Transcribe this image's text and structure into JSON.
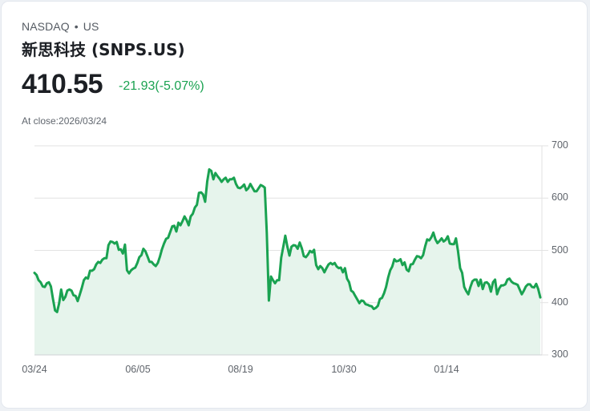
{
  "quote": {
    "exchange": "NASDAQ",
    "separator": "•",
    "market": "US",
    "title": "新思科技 (SNPS.US)",
    "price": "410.55",
    "change": "-21.93(-5.07%)",
    "close_label": "At close:2026/03/24"
  },
  "colors": {
    "line": "#1aa251",
    "fill": "#e6f4ec",
    "change_text": "#1aa251",
    "grid": "#e2e2e2"
  },
  "chart_data": {
    "type": "area",
    "title": "新思科技 (SNPS.US)",
    "xlabel": "",
    "ylabel": "",
    "ylim": [
      300,
      700
    ],
    "yticks": [
      700,
      600,
      500,
      400,
      300
    ],
    "xtick_labels": [
      "03/24",
      "06/05",
      "08/19",
      "10/30",
      "01/14"
    ],
    "grid": true,
    "legend": null,
    "approx_series_note": "values estimated from pixel positions, ordered chronologically from 03/24 to 03/24 (next year)",
    "series": [
      {
        "name": "SNPS.US close",
        "values": [
          457,
          453,
          443,
          439,
          431,
          430,
          437,
          439,
          431,
          407,
          385,
          382,
          399,
          425,
          405,
          411,
          423,
          425,
          423,
          414,
          413,
          403,
          415,
          428,
          443,
          448,
          446,
          461,
          461,
          464,
          473,
          478,
          476,
          482,
          485,
          485,
          510,
          517,
          516,
          513,
          516,
          501,
          502,
          494,
          511,
          462,
          456,
          462,
          465,
          467,
          476,
          487,
          491,
          503,
          498,
          488,
          478,
          478,
          473,
          470,
          476,
          488,
          502,
          513,
          522,
          524,
          535,
          546,
          547,
          536,
          553,
          548,
          556,
          565,
          558,
          548,
          565,
          570,
          582,
          587,
          610,
          611,
          607,
          593,
          632,
          655,
          652,
          636,
          648,
          642,
          637,
          631,
          636,
          639,
          631,
          636,
          636,
          639,
          627,
          620,
          619,
          622,
          626,
          615,
          619,
          627,
          620,
          613,
          613,
          619,
          625,
          623,
          620,
          534,
          404,
          450,
          443,
          437,
          443,
          443,
          486,
          507,
          528,
          507,
          490,
          507,
          510,
          509,
          503,
          515,
          504,
          489,
          487,
          492,
          499,
          496,
          501,
          472,
          464,
          470,
          466,
          458,
          466,
          473,
          476,
          473,
          476,
          469,
          466,
          467,
          458,
          466,
          446,
          439,
          423,
          420,
          413,
          406,
          399,
          404,
          403,
          397,
          396,
          394,
          393,
          388,
          390,
          394,
          407,
          409,
          418,
          430,
          448,
          462,
          469,
          483,
          479,
          480,
          483,
          472,
          477,
          463,
          460,
          473,
          474,
          482,
          489,
          488,
          485,
          491,
          508,
          521,
          519,
          525,
          534,
          521,
          514,
          518,
          523,
          517,
          520,
          527,
          513,
          512,
          512,
          523,
          498,
          466,
          457,
          430,
          422,
          416,
          430,
          441,
          444,
          444,
          432,
          444,
          426,
          438,
          439,
          435,
          421,
          439,
          444,
          416,
          427,
          433,
          433,
          435,
          444,
          446,
          440,
          437,
          436,
          434,
          425,
          416,
          423,
          431,
          435,
          435,
          430,
          429,
          436,
          426,
          410
        ]
      }
    ]
  }
}
